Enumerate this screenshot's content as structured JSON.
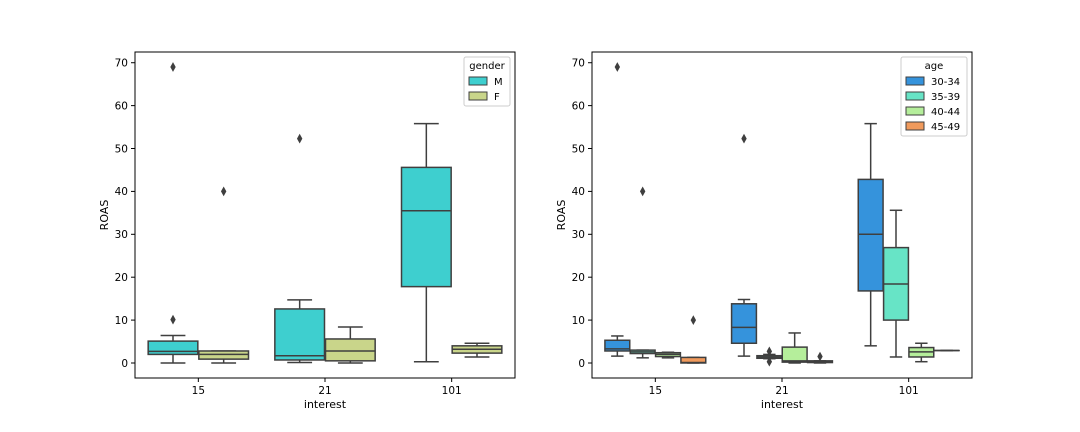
{
  "chart_data": [
    {
      "type": "box",
      "xlabel": "interest",
      "ylabel": "ROAS",
      "categories": [
        "15",
        "21",
        "101"
      ],
      "ylim": [
        -3.5,
        72.5
      ],
      "yticks": [
        0,
        10,
        20,
        30,
        40,
        50,
        60,
        70
      ],
      "legend": {
        "title": "gender",
        "position": "top-right"
      },
      "series": [
        {
          "name": "M",
          "color": "#3ecfcf",
          "boxes": [
            {
              "category": "15",
              "whislo": 0.0,
              "q1": 2.0,
              "med": 2.7,
              "q3": 5.1,
              "whishi": 6.4,
              "fliers": [
                10.1,
                69.0
              ]
            },
            {
              "category": "21",
              "whislo": 0.1,
              "q1": 0.7,
              "med": 1.7,
              "q3": 12.6,
              "whishi": 14.7,
              "fliers": [
                52.3
              ]
            },
            {
              "category": "101",
              "whislo": 0.3,
              "q1": 17.8,
              "med": 35.5,
              "q3": 45.6,
              "whishi": 55.8,
              "fliers": []
            }
          ]
        },
        {
          "name": "F",
          "color": "#c9d58a",
          "boxes": [
            {
              "category": "15",
              "whislo": 0.0,
              "q1": 0.9,
              "med": 2.0,
              "q3": 2.8,
              "whishi": 2.8,
              "fliers": [
                40.0
              ]
            },
            {
              "category": "21",
              "whislo": 0.0,
              "q1": 0.5,
              "med": 2.8,
              "q3": 5.6,
              "whishi": 8.4,
              "fliers": []
            },
            {
              "category": "101",
              "whislo": 1.4,
              "q1": 2.3,
              "med": 3.2,
              "q3": 4.0,
              "whishi": 4.6,
              "fliers": []
            }
          ]
        }
      ]
    },
    {
      "type": "box",
      "xlabel": "interest",
      "ylabel": "ROAS",
      "categories": [
        "15",
        "21",
        "101"
      ],
      "ylim": [
        -3.5,
        72.5
      ],
      "yticks": [
        0,
        10,
        20,
        30,
        40,
        50,
        60,
        70
      ],
      "legend": {
        "title": "age",
        "position": "top-right"
      },
      "series": [
        {
          "name": "30-34",
          "color": "#3593dc",
          "boxes": [
            {
              "category": "15",
              "whislo": 1.6,
              "q1": 2.8,
              "med": 3.3,
              "q3": 5.3,
              "whishi": 6.3,
              "fliers": [
                69.0
              ]
            },
            {
              "category": "21",
              "whislo": 1.6,
              "q1": 4.6,
              "med": 8.3,
              "q3": 13.8,
              "whishi": 14.8,
              "fliers": [
                52.3
              ]
            },
            {
              "category": "101",
              "whislo": 4.0,
              "q1": 16.8,
              "med": 30.0,
              "q3": 42.8,
              "whishi": 55.8,
              "fliers": []
            }
          ]
        },
        {
          "name": "35-39",
          "color": "#67e4c6",
          "boxes": [
            {
              "category": "15",
              "whislo": 1.2,
              "q1": 2.2,
              "med": 2.6,
              "q3": 3.0,
              "whishi": 3.0,
              "fliers": [
                40.0
              ]
            },
            {
              "category": "21",
              "whislo": 1.0,
              "q1": 1.1,
              "med": 1.4,
              "q3": 1.7,
              "whishi": 2.0,
              "fliers": [
                0.3,
                2.7
              ]
            },
            {
              "category": "101",
              "whislo": 1.4,
              "q1": 10.0,
              "med": 18.4,
              "q3": 26.9,
              "whishi": 35.6,
              "fliers": []
            }
          ]
        },
        {
          "name": "40-44",
          "color": "#b5ee9b",
          "boxes": [
            {
              "category": "15",
              "whislo": 1.2,
              "q1": 1.5,
              "med": 2.0,
              "q3": 2.4,
              "whishi": 2.5,
              "fliers": []
            },
            {
              "category": "21",
              "whislo": 0.0,
              "q1": 0.2,
              "med": 0.5,
              "q3": 3.7,
              "whishi": 7.0,
              "fliers": []
            },
            {
              "category": "101",
              "whislo": 0.3,
              "q1": 1.4,
              "med": 2.6,
              "q3": 3.6,
              "whishi": 4.6,
              "fliers": []
            }
          ]
        },
        {
          "name": "45-49",
          "color": "#f09a5c",
          "boxes": [
            {
              "category": "15",
              "whislo": 0.0,
              "q1": 0.0,
              "med": 0.1,
              "q3": 1.3,
              "whishi": 1.3,
              "fliers": [
                10.0
              ]
            },
            {
              "category": "21",
              "whislo": 0.0,
              "q1": 0.1,
              "med": 0.3,
              "q3": 0.5,
              "whishi": 0.5,
              "fliers": [
                1.5
              ]
            },
            {
              "category": "101",
              "whislo": 2.9,
              "q1": 2.9,
              "med": 2.9,
              "q3": 2.9,
              "whishi": 2.9,
              "fliers": []
            }
          ]
        }
      ]
    }
  ]
}
